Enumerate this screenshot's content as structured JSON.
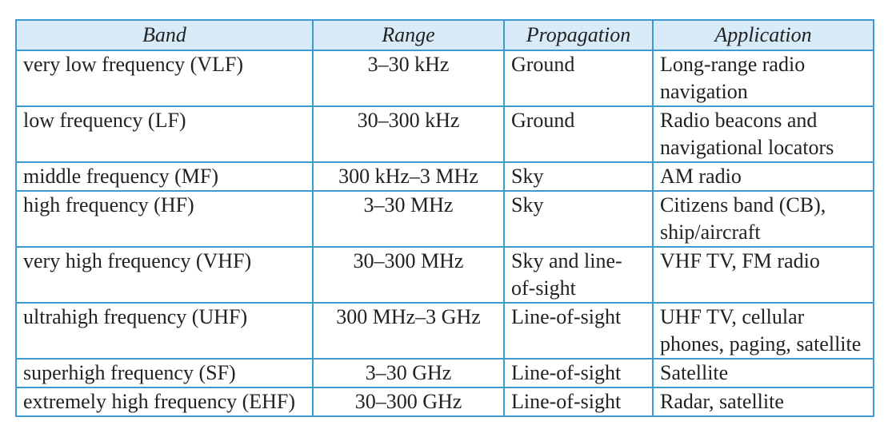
{
  "table": {
    "headers": {
      "band": "Band",
      "range": "Range",
      "propagation": "Propagation",
      "application": "Application"
    },
    "rows": [
      {
        "band": "very low frequency (VLF)",
        "range": "3–30 kHz",
        "propagation": "Ground",
        "application": "Long-range radio navigation"
      },
      {
        "band": "low frequency (LF)",
        "range": "30–300 kHz",
        "propagation": "Ground",
        "application": "Radio beacons and navigational locators"
      },
      {
        "band": "middle frequency (MF)",
        "range": "300 kHz–3 MHz",
        "propagation": "Sky",
        "application": "AM radio"
      },
      {
        "band": "high frequency (HF)",
        "range": "3–30 MHz",
        "propagation": "Sky",
        "application": "Citizens band (CB), ship/aircraft"
      },
      {
        "band": "very high frequency (VHF)",
        "range": "30–300 MHz",
        "propagation": "Sky and line-of-sight",
        "application": "VHF TV, FM radio"
      },
      {
        "band": "ultrahigh frequency (UHF)",
        "range": "300 MHz–3 GHz",
        "propagation": "Line-of-sight",
        "application": "UHF TV, cellular phones, paging, satellite"
      },
      {
        "band": "superhigh frequency (SF)",
        "range": "3–30 GHz",
        "propagation": "Line-of-sight",
        "application": "Satellite"
      },
      {
        "band": "extremely high frequency (EHF)",
        "range": "30–300 GHz",
        "propagation": "Line-of-sight",
        "application": "Radar, satellite"
      }
    ]
  },
  "colors": {
    "border": "#3d9bd1",
    "header_background": "#d7ecf8",
    "text": "#222222"
  }
}
